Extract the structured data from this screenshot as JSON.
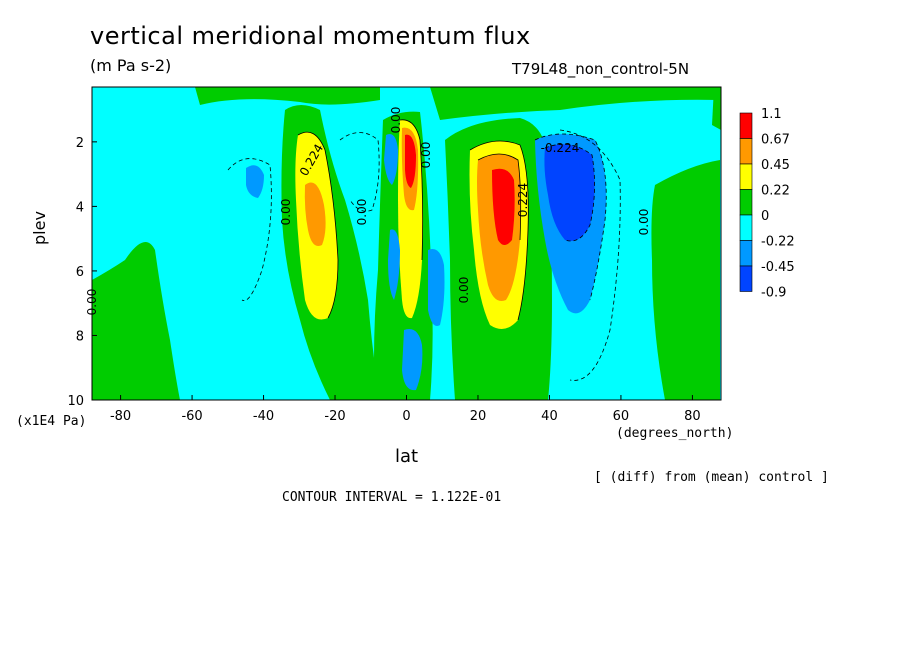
{
  "chart_data": {
    "type": "heatmap",
    "title": "vertical meridional momentum flux",
    "units": "(m Pa s-2)",
    "run_label": "T79L48_non_control-5N",
    "xlabel": "lat",
    "x_units": "(degrees_north)",
    "ylabel": "plev",
    "y_units": "(x1E4 Pa)",
    "xlim": [
      -88,
      88
    ],
    "ylim": [
      10,
      0.3
    ],
    "x_ticks": [
      "-80",
      "-60",
      "-40",
      "-20",
      "0",
      "20",
      "40",
      "60",
      "80"
    ],
    "y_ticks": [
      "2",
      "4",
      "6",
      "8",
      "10"
    ],
    "diff_note": "[ (diff) from (mean) control ]",
    "contour_interval": "CONTOUR INTERVAL = 1.122E-01",
    "colorbar": {
      "labels": [
        "1.1",
        "0.67",
        "0.45",
        "0.22",
        "0",
        "-0.22",
        "-0.45",
        "-0.9"
      ],
      "colors": [
        "#ff0000",
        "#ff9900",
        "#ffff00",
        "#00cc00",
        "#00ffff",
        "#0099ff",
        "#0044ff"
      ]
    },
    "contour_labels": [
      "0.224",
      "0.00",
      "0.00",
      "0.00",
      "0.00",
      "0.224",
      "0.00",
      "-0.224",
      "0.00",
      "0.00"
    ],
    "features": [
      {
        "lat": 27,
        "plev": 4.0,
        "value": 1.1
      },
      {
        "lat": 3,
        "plev": 2.8,
        "value": 1.1
      },
      {
        "lat": -27,
        "plev": 4.0,
        "value": 0.45
      },
      {
        "lat": 45,
        "plev": 4.0,
        "value": -0.9
      },
      {
        "lat": -45,
        "plev": 3.5,
        "value": -0.45
      },
      {
        "lat": 5,
        "plev": 9.0,
        "value": -0.45
      }
    ]
  }
}
